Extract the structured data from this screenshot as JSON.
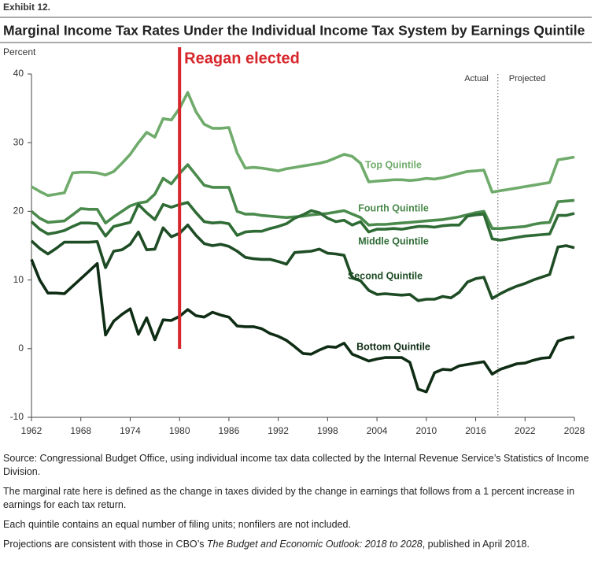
{
  "exhibit": "Exhibit 12.",
  "chart_data": {
    "type": "line",
    "title": "Marginal Income Tax Rates Under the Individual Income Tax System by Earnings Quintile",
    "y_label": "Percent",
    "x": [
      1962,
      1963,
      1964,
      1965,
      1966,
      1967,
      1968,
      1969,
      1970,
      1971,
      1972,
      1973,
      1974,
      1975,
      1976,
      1977,
      1978,
      1979,
      1980,
      1981,
      1982,
      1983,
      1984,
      1985,
      1986,
      1987,
      1988,
      1989,
      1990,
      1991,
      1992,
      1993,
      1994,
      1995,
      1996,
      1997,
      1998,
      1999,
      2000,
      2001,
      2002,
      2003,
      2004,
      2005,
      2006,
      2007,
      2008,
      2009,
      2010,
      2011,
      2012,
      2013,
      2014,
      2015,
      2016,
      2017,
      2018,
      2019,
      2020,
      2021,
      2022,
      2023,
      2024,
      2025,
      2026,
      2027,
      2028
    ],
    "xlim": [
      1962,
      2028
    ],
    "xticks": [
      1962,
      1968,
      1974,
      1980,
      1986,
      1992,
      1998,
      2004,
      2010,
      2016,
      2022,
      2028
    ],
    "ylim": [
      -10,
      40
    ],
    "yticks": [
      -10,
      0,
      10,
      20,
      30,
      40
    ],
    "series": [
      {
        "name": "Top Quintile",
        "color": "#6fab6b",
        "values": [
          23.6,
          22.9,
          22.3,
          22.5,
          22.7,
          25.6,
          25.7,
          25.7,
          25.6,
          25.3,
          25.8,
          27,
          28.3,
          30,
          31.5,
          30.8,
          33.5,
          33.3,
          35,
          37.3,
          34.5,
          32.7,
          32.1,
          32.1,
          32.2,
          28.5,
          26.3,
          26.4,
          26.3,
          26.1,
          25.9,
          26.2,
          26.4,
          26.6,
          26.8,
          27,
          27.3,
          27.8,
          28.3,
          28,
          27,
          24.3,
          24.4,
          24.5,
          24.6,
          24.6,
          24.5,
          24.6,
          24.8,
          24.7,
          24.9,
          25.2,
          25.5,
          25.8,
          25.9,
          26,
          22.8,
          23,
          23.2,
          23.4,
          23.6,
          23.8,
          24,
          24.2,
          27.5,
          27.7,
          27.9
        ]
      },
      {
        "name": "Fourth Quintile",
        "color": "#4a8a4c",
        "values": [
          20,
          19,
          18.4,
          18.5,
          18.6,
          19.5,
          20.4,
          20.3,
          20.3,
          18.3,
          19.2,
          20,
          20.8,
          21.2,
          21.4,
          22.5,
          24.8,
          24,
          25.5,
          26.8,
          25.3,
          23.8,
          23.5,
          23.5,
          23.5,
          20,
          19.6,
          19.6,
          19.4,
          19.3,
          19.2,
          19.1,
          19.2,
          19.3,
          19.5,
          19.6,
          19.7,
          19.9,
          20.1,
          19.6,
          19.1,
          18,
          18.1,
          18.1,
          18.2,
          18.3,
          18.4,
          18.5,
          18.6,
          18.7,
          18.8,
          19,
          19.2,
          19.5,
          19.8,
          20,
          17.5,
          17.5,
          17.6,
          17.7,
          17.8,
          18.1,
          18.3,
          18.4,
          21.4,
          21.5,
          21.6
        ]
      },
      {
        "name": "Middle Quintile",
        "color": "#2f6b35",
        "values": [
          18.5,
          17.4,
          16.7,
          16.9,
          17.2,
          17.8,
          18.3,
          18.3,
          18.2,
          16.4,
          17.8,
          18.1,
          18.4,
          21,
          19.8,
          18.8,
          21,
          20.6,
          21,
          21.3,
          19.8,
          18.5,
          18.3,
          18.4,
          18.2,
          16.5,
          17,
          17.1,
          17.1,
          17.5,
          17.8,
          18.2,
          19,
          19.5,
          20.1,
          19.8,
          19,
          18.5,
          18.7,
          18,
          18.5,
          17,
          17.4,
          17.4,
          17.5,
          17.4,
          17.6,
          17.8,
          17.8,
          17.7,
          17.9,
          18,
          18,
          19.3,
          19.5,
          19.6,
          16,
          15.8,
          16,
          16.2,
          16.4,
          16.5,
          16.6,
          16.7,
          19.4,
          19.4,
          19.7
        ]
      },
      {
        "name": "Second Quintile",
        "color": "#1e4c25",
        "values": [
          15.7,
          14.6,
          13.8,
          14.6,
          15.5,
          15.5,
          15.5,
          15.5,
          15.6,
          11.8,
          14.2,
          14.4,
          15.2,
          17,
          14.4,
          14.5,
          17.6,
          16.3,
          16.8,
          18,
          16.5,
          15.3,
          15,
          15.2,
          14.9,
          14.2,
          13.3,
          13.1,
          13,
          13,
          12.7,
          12.3,
          14,
          14.1,
          14.2,
          14.5,
          13.9,
          13.8,
          13.6,
          10.3,
          9.9,
          8.5,
          7.9,
          8,
          7.9,
          7.8,
          7.9,
          7,
          7.2,
          7.2,
          7.6,
          7.4,
          8.2,
          9.7,
          10.2,
          10.4,
          7.3,
          8,
          8.6,
          9.1,
          9.5,
          10,
          10.4,
          10.8,
          14.8,
          15,
          14.7
        ]
      },
      {
        "name": "Bottom Quintile",
        "color": "#0f2d14",
        "values": [
          13,
          10,
          8.1,
          8.1,
          8,
          9.1,
          10.2,
          11.3,
          12.4,
          2,
          4,
          5,
          5.8,
          2.1,
          4.5,
          1.3,
          4.2,
          4.1,
          4.7,
          5.7,
          4.8,
          4.6,
          5.3,
          4.9,
          4.6,
          3.3,
          3.2,
          3.2,
          2.9,
          2.2,
          1.8,
          1.2,
          0.3,
          -0.7,
          -0.8,
          -0.2,
          0.3,
          0.2,
          0.8,
          -0.8,
          -1.3,
          -1.8,
          -1.5,
          -1.3,
          -1.3,
          -1.3,
          -2,
          -5.9,
          -6.3,
          -3.5,
          -3,
          -3.1,
          -2.5,
          -2.3,
          -2.1,
          -1.9,
          -3.7,
          -3,
          -2.6,
          -2.2,
          -2.1,
          -1.7,
          -1.4,
          -1.3,
          1.1,
          1.5,
          1.7
        ]
      }
    ],
    "annotations": [
      {
        "text": "Reagan elected",
        "x": 1980,
        "color": "#d7262b"
      }
    ],
    "divider": {
      "x": 2018.7,
      "left": "Actual",
      "right": "Projected"
    }
  },
  "notes": [
    "Source: Congressional Budget Office, using individual income tax data collected by the Internal Revenue Service’s Statistics of Income Division.",
    "The marginal rate here is defined as the change in taxes divided by the change in earnings that follows from a 1 percent increase in earnings for each tax return.",
    "Each quintile contains an equal number of filing units; nonfilers are not included.",
    [
      "Projections are consistent with those in CBO’s ",
      "The Budget and Economic Outlook: 2018 to 2028",
      ", published in April 2018."
    ]
  ]
}
